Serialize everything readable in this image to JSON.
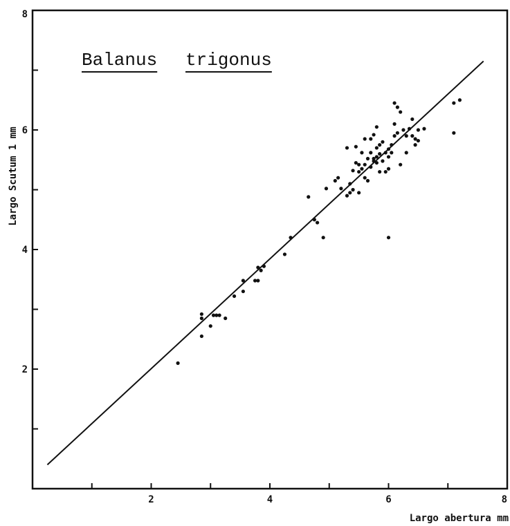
{
  "chart_data": {
    "type": "scatter",
    "title": "Balanus trigonus",
    "title_words": [
      "Balanus",
      "trigonus"
    ],
    "xlabel": "Largo abertura mm",
    "ylabel": "Largo Scutum 1 mm",
    "xlim": [
      0,
      8
    ],
    "ylim": [
      0,
      8
    ],
    "x_major_ticks": [
      2,
      4,
      6,
      8
    ],
    "x_minor_ticks": [
      1,
      3,
      5,
      7
    ],
    "y_major_ticks": [
      2,
      4,
      6,
      8
    ],
    "y_minor_ticks": [
      1,
      3,
      5,
      7
    ],
    "grid": false,
    "legend": "none",
    "fit_line": {
      "x": [
        0.25,
        7.6
      ],
      "y": [
        0.4,
        7.15
      ]
    },
    "points": {
      "x": [
        2.45,
        2.85,
        2.85,
        2.85,
        3.0,
        3.05,
        3.1,
        3.15,
        3.25,
        3.4,
        3.55,
        3.55,
        3.75,
        3.8,
        3.8,
        3.85,
        3.9,
        4.25,
        4.35,
        4.65,
        4.75,
        4.8,
        4.9,
        4.95,
        5.1,
        5.15,
        5.2,
        5.3,
        5.3,
        5.35,
        5.35,
        5.4,
        5.4,
        5.45,
        5.45,
        5.5,
        5.5,
        5.5,
        5.55,
        5.55,
        5.6,
        5.6,
        5.6,
        5.65,
        5.65,
        5.7,
        5.7,
        5.7,
        5.75,
        5.75,
        5.75,
        5.8,
        5.8,
        5.8,
        5.8,
        5.85,
        5.85,
        5.85,
        5.9,
        5.9,
        5.95,
        5.95,
        6.0,
        6.0,
        6.0,
        6.0,
        6.05,
        6.05,
        6.1,
        6.1,
        6.1,
        6.15,
        6.15,
        6.2,
        6.2,
        6.25,
        6.3,
        6.3,
        6.35,
        6.4,
        6.4,
        6.45,
        6.45,
        6.5,
        6.5,
        6.6,
        7.1,
        7.1,
        7.2
      ],
      "y": [
        2.1,
        2.85,
        2.92,
        2.55,
        2.72,
        2.9,
        2.9,
        2.9,
        2.85,
        3.22,
        3.3,
        3.48,
        3.48,
        3.48,
        3.7,
        3.65,
        3.72,
        3.92,
        4.2,
        4.88,
        4.5,
        4.45,
        4.2,
        5.02,
        5.15,
        5.2,
        5.02,
        5.7,
        4.9,
        4.95,
        5.1,
        5.0,
        5.32,
        5.45,
        5.72,
        5.3,
        5.42,
        4.95,
        5.62,
        5.35,
        5.42,
        5.85,
        5.2,
        5.52,
        5.15,
        5.62,
        5.38,
        5.85,
        5.52,
        5.48,
        5.92,
        5.55,
        5.7,
        5.45,
        6.05,
        5.6,
        5.75,
        5.3,
        5.48,
        5.8,
        5.62,
        5.3,
        5.68,
        5.55,
        5.35,
        4.2,
        5.75,
        5.62,
        6.45,
        6.1,
        5.9,
        6.38,
        5.95,
        6.3,
        5.42,
        6.0,
        5.62,
        5.9,
        6.02,
        6.18,
        5.9,
        5.75,
        5.85,
        5.82,
        6.0,
        6.02,
        5.95,
        6.45,
        6.5
      ]
    }
  }
}
